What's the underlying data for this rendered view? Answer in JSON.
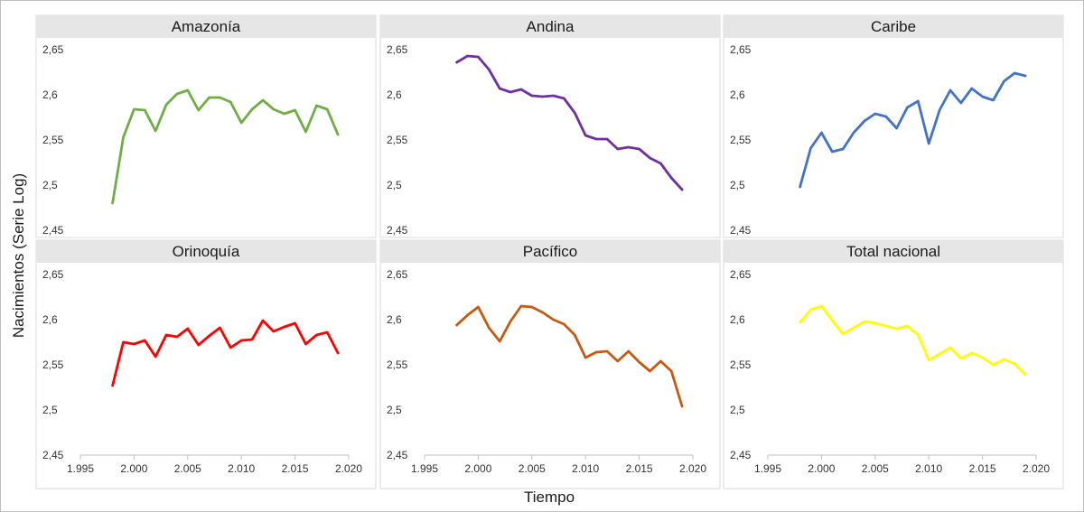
{
  "chart_data": {
    "type": "line",
    "xlabel": "Tiempo",
    "ylabel": "Nacimientos (Serie Log)",
    "xlim": [
      1995,
      2020
    ],
    "ylim": [
      2.45,
      2.65
    ],
    "x_ticks": [
      1995,
      2000,
      2005,
      2010,
      2015,
      2020
    ],
    "x_tick_labels": [
      "1.995",
      "2.000",
      "2.005",
      "2.010",
      "2.015",
      "2.020"
    ],
    "y_ticks": [
      2.45,
      2.5,
      2.55,
      2.6,
      2.65
    ],
    "y_tick_labels": [
      "2,45",
      "2,5",
      "2,55",
      "2,6",
      "2,65"
    ],
    "grid": false,
    "x": [
      1998,
      1999,
      2000,
      2001,
      2002,
      2003,
      2004,
      2005,
      2006,
      2007,
      2008,
      2009,
      2010,
      2011,
      2012,
      2013,
      2014,
      2015,
      2016,
      2017,
      2018,
      2019
    ],
    "panels": [
      {
        "title": "Amazonía",
        "color": "#70ad47",
        "values": [
          2.48,
          2.553,
          2.584,
          2.583,
          2.56,
          2.589,
          2.601,
          2.605,
          2.583,
          2.597,
          2.597,
          2.592,
          2.569,
          2.584,
          2.594,
          2.584,
          2.579,
          2.583,
          2.559,
          2.588,
          2.584,
          2.556
        ]
      },
      {
        "title": "Andina",
        "color": "#7030a0",
        "values": [
          2.636,
          2.643,
          2.642,
          2.628,
          2.607,
          2.603,
          2.606,
          2.599,
          2.598,
          2.599,
          2.596,
          2.58,
          2.555,
          2.551,
          2.551,
          2.54,
          2.542,
          2.54,
          2.53,
          2.524,
          2.508,
          2.495
        ]
      },
      {
        "title": "Caribe",
        "color": "#4472c4",
        "values": [
          2.498,
          2.541,
          2.558,
          2.537,
          2.54,
          2.558,
          2.571,
          2.579,
          2.576,
          2.563,
          2.586,
          2.593,
          2.546,
          2.583,
          2.605,
          2.591,
          2.607,
          2.598,
          2.594,
          2.615,
          2.624,
          2.621
        ]
      },
      {
        "title": "Orinoquía",
        "color": "#ff0000",
        "values": [
          2.527,
          2.575,
          2.573,
          2.577,
          2.559,
          2.583,
          2.581,
          2.59,
          2.572,
          2.582,
          2.591,
          2.569,
          2.577,
          2.578,
          2.599,
          2.587,
          2.592,
          2.596,
          2.573,
          2.583,
          2.586,
          2.563
        ]
      },
      {
        "title": "Pacífico",
        "color": "#c55a11",
        "values": [
          2.594,
          2.605,
          2.614,
          2.591,
          2.576,
          2.598,
          2.615,
          2.614,
          2.608,
          2.6,
          2.595,
          2.583,
          2.558,
          2.564,
          2.565,
          2.554,
          2.565,
          2.553,
          2.543,
          2.554,
          2.543,
          2.504
        ]
      },
      {
        "title": "Total nacional",
        "color": "#ffff00",
        "values": [
          2.597,
          2.611,
          2.615,
          2.599,
          2.584,
          2.591,
          2.598,
          2.596,
          2.593,
          2.59,
          2.593,
          2.583,
          2.555,
          2.562,
          2.569,
          2.557,
          2.563,
          2.558,
          2.55,
          2.556,
          2.551,
          2.539
        ]
      }
    ]
  }
}
